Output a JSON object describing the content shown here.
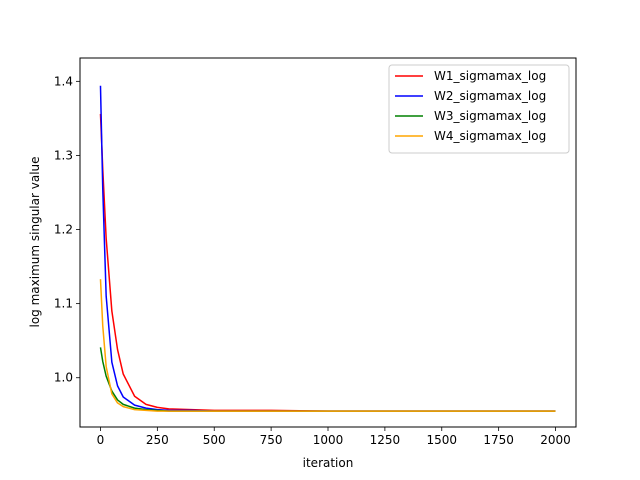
{
  "chart_data": {
    "type": "line",
    "title": "",
    "xlabel": "iteration",
    "ylabel": "log maximum singular value",
    "xlim": [
      -90,
      2090
    ],
    "ylim": [
      0.9335,
      1.4315
    ],
    "xticks": [
      0,
      250,
      500,
      750,
      1000,
      1250,
      1500,
      1750,
      2000
    ],
    "xtick_labels": [
      "0",
      "250",
      "500",
      "750",
      "1000",
      "1250",
      "1500",
      "1750",
      "2000"
    ],
    "yticks": [
      1.0,
      1.1,
      1.2,
      1.3,
      1.4
    ],
    "ytick_labels": [
      "1.0",
      "1.1",
      "1.2",
      "1.3",
      "1.4"
    ],
    "grid": false,
    "legend_position": "top-right",
    "series": [
      {
        "name": "W1_sigmamax_log",
        "color": "#ff0000",
        "x": [
          0,
          10,
          25,
          50,
          75,
          100,
          150,
          200,
          250,
          300,
          400,
          500,
          750,
          1000,
          1500,
          2000
        ],
        "y": [
          1.356,
          1.282,
          1.188,
          1.09,
          1.038,
          1.005,
          0.975,
          0.964,
          0.96,
          0.958,
          0.957,
          0.956,
          0.956,
          0.955,
          0.955,
          0.955
        ]
      },
      {
        "name": "W2_sigmamax_log",
        "color": "#0000ff",
        "x": [
          0,
          10,
          25,
          50,
          75,
          100,
          150,
          200,
          250,
          300,
          400,
          500,
          750,
          1000,
          1500,
          2000
        ],
        "y": [
          1.394,
          1.255,
          1.11,
          1.021,
          0.989,
          0.974,
          0.963,
          0.959,
          0.957,
          0.956,
          0.956,
          0.955,
          0.955,
          0.955,
          0.955,
          0.955
        ]
      },
      {
        "name": "W3_sigmamax_log",
        "color": "#008000",
        "x": [
          0,
          10,
          25,
          50,
          75,
          100,
          150,
          200,
          250,
          300,
          500,
          750,
          1000,
          1500,
          2000
        ],
        "y": [
          1.041,
          1.022,
          1.002,
          0.982,
          0.97,
          0.964,
          0.959,
          0.957,
          0.956,
          0.955,
          0.955,
          0.955,
          0.955,
          0.955,
          0.955
        ]
      },
      {
        "name": "W4_sigmamax_log",
        "color": "#ffa500",
        "x": [
          0,
          10,
          25,
          50,
          75,
          100,
          150,
          200,
          250,
          300,
          500,
          750,
          1000,
          1500,
          2000
        ],
        "y": [
          1.133,
          1.07,
          1.015,
          0.978,
          0.966,
          0.961,
          0.957,
          0.956,
          0.955,
          0.955,
          0.955,
          0.955,
          0.955,
          0.955,
          0.955
        ]
      }
    ]
  }
}
